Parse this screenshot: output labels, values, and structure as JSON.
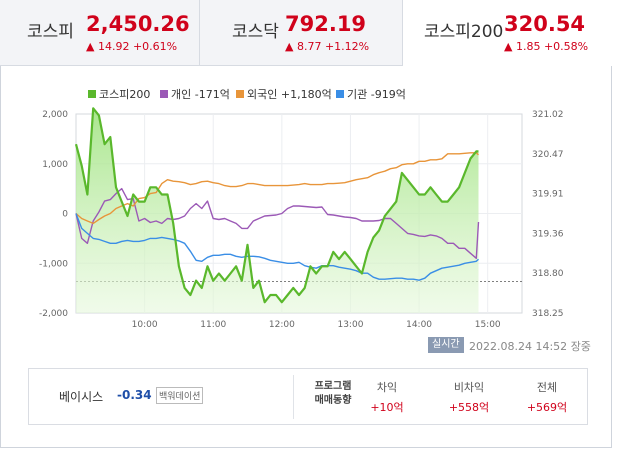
{
  "tabs": [
    {
      "name": "코스피",
      "value": "2,450.26",
      "change": "▲ 14.92 +0.61%",
      "active": false
    },
    {
      "name": "코스닥",
      "value": "792.19",
      "change": "▲ 8.77 +1.12%",
      "active": false
    },
    {
      "name": "코스피200",
      "value": "320.54",
      "change": "▲ 1.85 +0.58%",
      "active": true
    }
  ],
  "legend": [
    {
      "label": "코스피200",
      "color": "#5ab82c"
    },
    {
      "label": "개인 -171억",
      "color": "#9b59b6"
    },
    {
      "label": "외국인 +1,180억",
      "color": "#e8953a"
    },
    {
      "label": "기관 -919억",
      "color": "#3a8ee6"
    }
  ],
  "chart_data": {
    "type": "line",
    "x_ticks": [
      "10:00",
      "11:00",
      "12:00",
      "13:00",
      "14:00",
      "15:00"
    ],
    "left_axis": {
      "ticks": [
        "2,000",
        "1,000",
        "0",
        "-1,000",
        "-2,000"
      ],
      "range": [
        -2000,
        2000
      ],
      "unit": "억"
    },
    "right_axis": {
      "ticks": [
        "321.02",
        "320.47",
        "319.91",
        "319.36",
        "318.80",
        "318.25"
      ],
      "range": [
        318.25,
        321.02
      ]
    },
    "prev_close": 318.69,
    "x": [
      "09:00",
      "09:05",
      "09:10",
      "09:15",
      "09:20",
      "09:25",
      "09:30",
      "09:35",
      "09:40",
      "09:45",
      "09:50",
      "09:55",
      "10:00",
      "10:05",
      "10:10",
      "10:15",
      "10:20",
      "10:25",
      "10:30",
      "10:35",
      "10:40",
      "10:45",
      "10:50",
      "10:55",
      "11:00",
      "11:05",
      "11:10",
      "11:15",
      "11:20",
      "11:25",
      "11:30",
      "11:35",
      "11:40",
      "11:45",
      "11:50",
      "11:55",
      "12:00",
      "12:05",
      "12:10",
      "12:15",
      "12:20",
      "12:25",
      "12:30",
      "12:35",
      "12:40",
      "12:45",
      "12:50",
      "12:55",
      "13:00",
      "13:05",
      "13:10",
      "13:15",
      "13:20",
      "13:25",
      "13:30",
      "13:35",
      "13:40",
      "13:45",
      "13:50",
      "13:55",
      "14:00",
      "14:05",
      "14:10",
      "14:15",
      "14:20",
      "14:25",
      "14:30",
      "14:35",
      "14:40",
      "14:45",
      "14:50",
      "14:52"
    ],
    "series": [
      {
        "name": "코스피200",
        "axis": "right",
        "values": [
          320.6,
          320.3,
          319.9,
          321.1,
          321.0,
          320.6,
          320.7,
          320.0,
          319.8,
          319.6,
          319.9,
          319.8,
          319.8,
          320.0,
          320.0,
          319.9,
          319.9,
          319.5,
          318.9,
          318.6,
          318.5,
          318.7,
          318.6,
          318.9,
          318.7,
          318.8,
          318.7,
          318.8,
          318.9,
          318.7,
          319.2,
          318.6,
          318.7,
          318.4,
          318.5,
          318.5,
          318.4,
          318.5,
          318.6,
          318.5,
          318.6,
          318.9,
          318.8,
          318.9,
          318.9,
          319.1,
          319.0,
          319.1,
          319.0,
          318.9,
          318.8,
          319.1,
          319.3,
          319.4,
          319.6,
          319.7,
          319.8,
          320.2,
          320.1,
          320.0,
          319.9,
          319.9,
          320.0,
          319.9,
          319.8,
          319.8,
          319.9,
          320.0,
          320.2,
          320.4,
          320.5,
          320.5
        ]
      },
      {
        "name": "개인",
        "axis": "left",
        "values": [
          0,
          -500,
          -600,
          -150,
          30,
          250,
          280,
          400,
          500,
          280,
          300,
          -150,
          -100,
          -180,
          -150,
          -200,
          -100,
          -120,
          -100,
          -50,
          100,
          200,
          100,
          250,
          -100,
          -120,
          -100,
          -150,
          -200,
          -300,
          -300,
          -150,
          -100,
          -50,
          -40,
          -30,
          0,
          100,
          150,
          150,
          140,
          130,
          120,
          130,
          -20,
          -30,
          -50,
          -70,
          -80,
          -100,
          -150,
          -150,
          -150,
          -140,
          -100,
          -100,
          -200,
          -300,
          -400,
          -420,
          -450,
          -460,
          -430,
          -450,
          -500,
          -600,
          -600,
          -700,
          -700,
          -800,
          -900,
          -171
        ]
      },
      {
        "name": "외국인",
        "axis": "left",
        "values": [
          0,
          -100,
          -150,
          -200,
          -120,
          -50,
          0,
          100,
          150,
          200,
          150,
          300,
          320,
          400,
          420,
          600,
          680,
          650,
          640,
          620,
          580,
          600,
          640,
          650,
          620,
          600,
          560,
          540,
          540,
          560,
          600,
          600,
          580,
          560,
          560,
          560,
          560,
          560,
          570,
          580,
          600,
          580,
          580,
          580,
          600,
          600,
          610,
          620,
          650,
          680,
          700,
          720,
          780,
          820,
          850,
          900,
          920,
          980,
          1000,
          1000,
          1050,
          1050,
          1080,
          1080,
          1100,
          1200,
          1200,
          1200,
          1210,
          1220,
          1220,
          1180
        ]
      },
      {
        "name": "기관",
        "axis": "left",
        "values": [
          0,
          -300,
          -400,
          -500,
          -520,
          -560,
          -600,
          -600,
          -560,
          -540,
          -560,
          -560,
          -540,
          -500,
          -500,
          -480,
          -500,
          -520,
          -550,
          -600,
          -760,
          -940,
          -960,
          -880,
          -840,
          -840,
          -820,
          -820,
          -860,
          -880,
          -860,
          -860,
          -870,
          -900,
          -940,
          -960,
          -980,
          -1000,
          -1000,
          -980,
          -1050,
          -1080,
          -1100,
          -1050,
          -1050,
          -1050,
          -1080,
          -1100,
          -1120,
          -1150,
          -1200,
          -1200,
          -1280,
          -1320,
          -1320,
          -1310,
          -1300,
          -1300,
          -1320,
          -1320,
          -1340,
          -1300,
          -1200,
          -1150,
          -1100,
          -1080,
          -1060,
          -1040,
          -1000,
          -980,
          -960,
          -919
        ]
      }
    ]
  },
  "realtime_badge": "실시간",
  "timestamp": "2022.08.24 14:52",
  "market_status": "장중",
  "basis": {
    "label": "베이시스",
    "value": "-0.34",
    "unit": "백워데이션"
  },
  "program": {
    "label_line1": "프로그램",
    "label_line2": "매매동향",
    "columns": [
      {
        "header": "차익",
        "value": "+10억"
      },
      {
        "header": "비차익",
        "value": "+558억"
      },
      {
        "header": "전체",
        "value": "+569억"
      }
    ]
  }
}
